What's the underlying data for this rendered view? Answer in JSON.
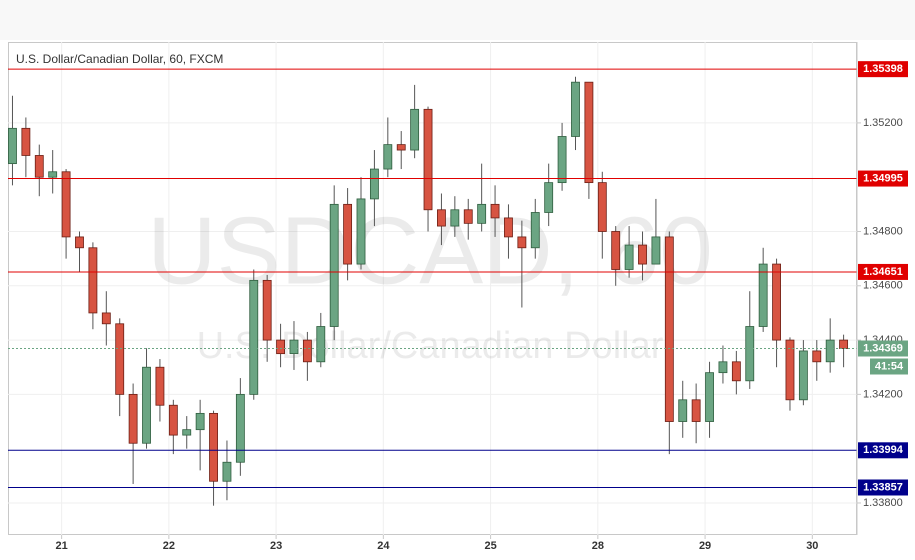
{
  "chart_data": {
    "type": "candlestick",
    "title": "U.S. Dollar/Canadian Dollar, 60, FXCM",
    "watermark": "USDCAD, 60",
    "watermark_subtitle": "U.S. Dollar/Canadian Dollar",
    "x": [
      1,
      4,
      7,
      10,
      13,
      16,
      19,
      22,
      25,
      28,
      31,
      34,
      37,
      40,
      43,
      46,
      49,
      52,
      55,
      58,
      61,
      64,
      67,
      70,
      73,
      76,
      79,
      82,
      85,
      88,
      91,
      94,
      97,
      100,
      103,
      106,
      109,
      112,
      115,
      118,
      121,
      124,
      127,
      130,
      133,
      136,
      139,
      142,
      145,
      148,
      151,
      154,
      157,
      160,
      163,
      166,
      169,
      172,
      175,
      178,
      181,
      184,
      187
    ],
    "open": [
      1.3505,
      1.3518,
      1.3508,
      1.35,
      1.3502,
      1.3478,
      1.3474,
      1.345,
      1.3446,
      1.342,
      1.3402,
      1.343,
      1.3416,
      1.3405,
      1.3407,
      1.3413,
      1.3388,
      1.3395,
      1.342,
      1.3462,
      1.344,
      1.3435,
      1.344,
      1.3432,
      1.3445,
      1.349,
      1.3468,
      1.3492,
      1.3503,
      1.3512,
      1.351,
      1.3525,
      1.3488,
      1.3482,
      1.3488,
      1.3483,
      1.349,
      1.3485,
      1.3478,
      1.3474,
      1.3487,
      1.3498,
      1.3515,
      1.3535,
      1.3498,
      1.348,
      1.3466,
      1.3475,
      1.3468,
      1.3478,
      1.341,
      1.3418,
      1.341,
      1.3428,
      1.3432,
      1.3425,
      1.3445,
      1.3468,
      1.344,
      1.3418,
      1.3436,
      1.3432,
      1.344
    ],
    "high": [
      1.353,
      1.3522,
      1.3512,
      1.351,
      1.3503,
      1.348,
      1.3476,
      1.3458,
      1.3448,
      1.3424,
      1.3437,
      1.3433,
      1.3418,
      1.3412,
      1.3418,
      1.3414,
      1.3403,
      1.3426,
      1.3466,
      1.3464,
      1.3446,
      1.3447,
      1.3443,
      1.345,
      1.3497,
      1.3496,
      1.35,
      1.351,
      1.3522,
      1.3517,
      1.3534,
      1.3526,
      1.3494,
      1.3493,
      1.3492,
      1.3505,
      1.3497,
      1.349,
      1.3484,
      1.3492,
      1.3505,
      1.352,
      1.3537,
      1.3535,
      1.3502,
      1.3482,
      1.3482,
      1.348,
      1.3492,
      1.348,
      1.3425,
      1.3424,
      1.3432,
      1.3438,
      1.3436,
      1.3458,
      1.3474,
      1.347,
      1.3441,
      1.344,
      1.344,
      1.3448,
      1.3442
    ],
    "low": [
      1.3497,
      1.35,
      1.3493,
      1.3494,
      1.347,
      1.3465,
      1.3444,
      1.3438,
      1.3412,
      1.3387,
      1.34,
      1.341,
      1.3398,
      1.34,
      1.3392,
      1.3379,
      1.3381,
      1.339,
      1.3418,
      1.3432,
      1.343,
      1.3429,
      1.3425,
      1.343,
      1.344,
      1.3462,
      1.3466,
      1.3482,
      1.35,
      1.3503,
      1.3507,
      1.348,
      1.3475,
      1.3478,
      1.3477,
      1.348,
      1.3478,
      1.347,
      1.3452,
      1.347,
      1.3482,
      1.3495,
      1.351,
      1.3492,
      1.347,
      1.346,
      1.3463,
      1.3462,
      1.3468,
      1.3398,
      1.3404,
      1.3402,
      1.3404,
      1.3424,
      1.342,
      1.3422,
      1.3443,
      1.343,
      1.3414,
      1.3416,
      1.3425,
      1.3428,
      1.343
    ],
    "close": [
      1.3518,
      1.3508,
      1.35,
      1.3502,
      1.3478,
      1.3474,
      1.345,
      1.3446,
      1.342,
      1.3402,
      1.343,
      1.3416,
      1.3405,
      1.3407,
      1.3413,
      1.3388,
      1.3395,
      1.342,
      1.3462,
      1.344,
      1.3435,
      1.344,
      1.3432,
      1.3445,
      1.349,
      1.3468,
      1.3492,
      1.3503,
      1.3512,
      1.351,
      1.3525,
      1.3488,
      1.3482,
      1.3488,
      1.3483,
      1.349,
      1.3485,
      1.3478,
      1.3474,
      1.3487,
      1.3498,
      1.3515,
      1.3535,
      1.3498,
      1.348,
      1.3466,
      1.3475,
      1.3468,
      1.3478,
      1.341,
      1.3418,
      1.341,
      1.3428,
      1.3432,
      1.3425,
      1.3445,
      1.3468,
      1.344,
      1.3418,
      1.3436,
      1.3432,
      1.344,
      1.34369
    ],
    "up_color": "#6ba583",
    "down_color": "#d75442",
    "xlim": [
      0,
      190
    ],
    "xticks": [
      {
        "value": 12,
        "label": "21"
      },
      {
        "value": 36,
        "label": "22"
      },
      {
        "value": 60,
        "label": "23"
      },
      {
        "value": 84,
        "label": "24"
      },
      {
        "value": 108,
        "label": "25"
      },
      {
        "value": 132,
        "label": "28"
      },
      {
        "value": 156,
        "label": "29"
      },
      {
        "value": 180,
        "label": "30"
      }
    ],
    "ylim": [
      1.33682,
      1.35498
    ],
    "yticks": [
      {
        "value": 1.338,
        "label": "1.33800"
      },
      {
        "value": 1.342,
        "label": "1.34200"
      },
      {
        "value": 1.344,
        "label": "1.34400"
      },
      {
        "value": 1.346,
        "label": "1.34600"
      },
      {
        "value": 1.348,
        "label": "1.34800"
      },
      {
        "value": 1.352,
        "label": "1.35200"
      }
    ],
    "grid": true,
    "levels": [
      {
        "value": 1.35398,
        "color": "#e00000"
      },
      {
        "value": 1.34995,
        "color": "#e00000"
      },
      {
        "value": 1.34651,
        "color": "#e00000"
      },
      {
        "value": 1.33994,
        "color": "#00008b"
      },
      {
        "value": 1.33857,
        "color": "#00008b"
      }
    ],
    "last_price": 1.34369,
    "last_price_color": "#6ba583",
    "countdown": "41:54"
  }
}
